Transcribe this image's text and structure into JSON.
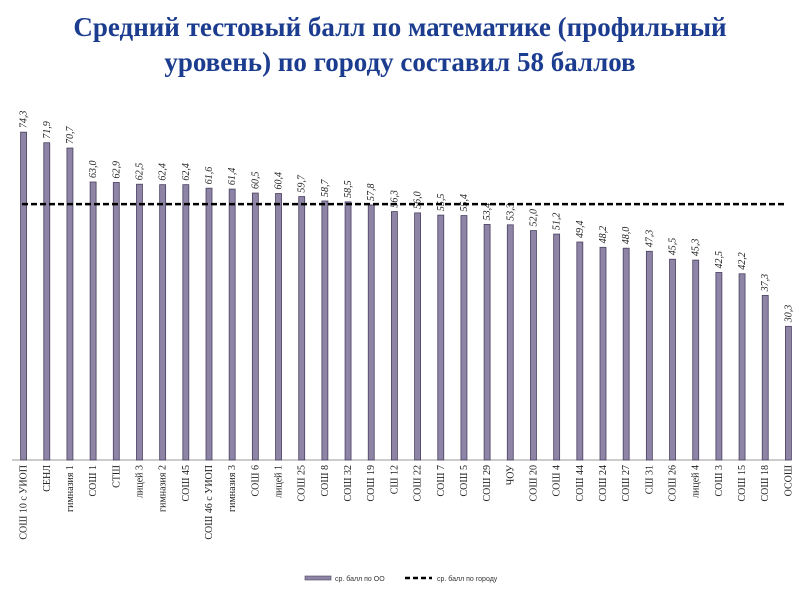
{
  "chart_data": {
    "type": "bar",
    "title": "Средний тестовый балл по математике (профильный уровень) по городу составил 58 баллов",
    "categories": [
      "СОШ 10 с УИОП",
      "СЕНЛ",
      "гимназия 1",
      "СОШ 1",
      "СТШ",
      "лицей 3",
      "гимназия 2",
      "СОШ 45",
      "СОШ 46 с УИОП",
      "гимназия 3",
      "СОШ 6",
      "лицей 1",
      "СОШ 25",
      "СОШ 8",
      "СОШ 32",
      "СОШ 19",
      "СШ 12",
      "СОШ 22",
      "СОШ 7",
      "СОШ 5",
      "СОШ 29",
      "ЧОУ",
      "СОШ 20",
      "СОШ 4",
      "СОШ 44",
      "СОШ 24",
      "СОШ 27",
      "СШ 31",
      "СОШ 26",
      "лицей 4",
      "СОШ 3",
      "СОШ 15",
      "СОШ 18",
      "ОСОШ"
    ],
    "series": [
      {
        "name": "ср. балл по ОО",
        "color": "#8e84a6",
        "values": [
          74.3,
          71.9,
          70.7,
          63.0,
          62.9,
          62.5,
          62.4,
          62.4,
          61.6,
          61.4,
          60.5,
          60.4,
          59.7,
          58.7,
          58.5,
          57.8,
          56.3,
          56.0,
          55.5,
          55.4,
          53.4,
          53.3,
          52.0,
          51.2,
          49.4,
          48.2,
          48.0,
          47.3,
          45.5,
          45.3,
          42.5,
          42.2,
          37.3,
          30.3
        ],
        "value_labels": [
          "74,3",
          "71,9",
          "70,7",
          "63,0",
          "62,9",
          "62,5",
          "62,4",
          "62,4",
          "61,6",
          "61,4",
          "60,5",
          "60,4",
          "59,7",
          "58,7",
          "58,5",
          "57,8",
          "56,3",
          "56,0",
          "55,5",
          "55,4",
          "53,4",
          "53,3",
          "52,0",
          "51,2",
          "49,4",
          "48,2",
          "48,0",
          "47,3",
          "45,5",
          "45,3",
          "42,5",
          "42,2",
          "37,3",
          "30,3"
        ]
      }
    ],
    "average": {
      "name": "ср. балл по городу",
      "value": 58,
      "color": "#000000"
    },
    "ylim": [
      0,
      80
    ]
  }
}
